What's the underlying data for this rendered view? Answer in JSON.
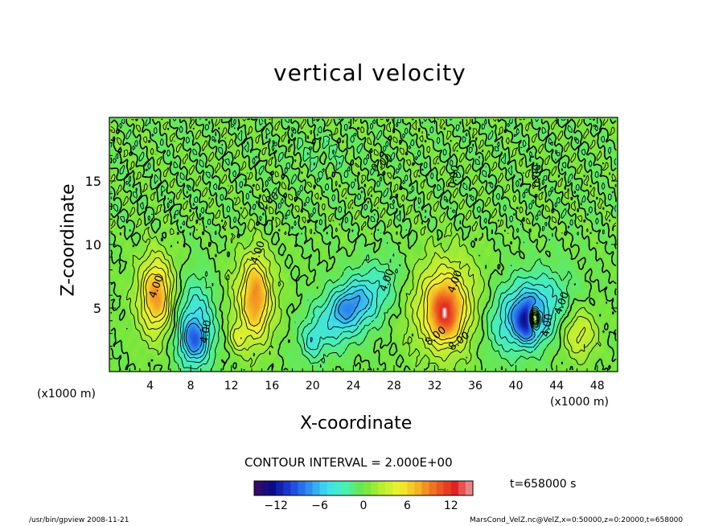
{
  "chart_data": {
    "type": "heatmap",
    "title": "vertical velocity",
    "xlabel": "X-coordinate",
    "ylabel": "Z-coordinate",
    "x_unit_left": "(x1000 m)",
    "x_unit_right": "(x1000 m)",
    "xlim": [
      0,
      50
    ],
    "ylim": [
      0,
      20
    ],
    "x_ticks": [
      4,
      8,
      12,
      16,
      20,
      24,
      28,
      32,
      36,
      40,
      44,
      48
    ],
    "y_ticks": [
      5,
      10,
      15
    ],
    "contour_interval_text": "CONTOUR INTERVAL = 2.000E+00",
    "time_text": "t=658000 s",
    "contour_labels": [
      "4.00",
      "4.00",
      "4.00",
      "4.00",
      "4.00",
      "4.00",
      "4.00",
      "0.00",
      "0.00",
      "0.00",
      "0.00",
      "8.00",
      "8.00"
    ],
    "colorbar": {
      "min": -15,
      "max": 15,
      "ticks": [
        -12,
        -6,
        0,
        6,
        12
      ],
      "stops": [
        "#3a0a63",
        "#0b0b8a",
        "#1c40dc",
        "#2f8ef0",
        "#3fe0ee",
        "#48f0b0",
        "#6ee640",
        "#b9ee30",
        "#f2f22e",
        "#f5b224",
        "#ee6322",
        "#e02222",
        "#f19a9a"
      ]
    },
    "cells": [
      {
        "x": 4.6,
        "z": 6.0,
        "w": 0.27,
        "sx": 1.5,
        "sz": 2.4
      },
      {
        "x": 4.6,
        "z": 6.0,
        "w": 0.3,
        "sx": 0.9,
        "sz": 1.8
      },
      {
        "x": 8.4,
        "z": 3.6,
        "w": -0.35,
        "sx": 1.4,
        "sz": 2.4
      },
      {
        "x": 8.3,
        "z": 2.4,
        "w": -0.3,
        "sx": 0.8,
        "sz": 1.0
      },
      {
        "x": 14.2,
        "z": 5.6,
        "w": 0.3,
        "sx": 1.6,
        "sz": 2.6
      },
      {
        "x": 14.4,
        "z": 6.0,
        "w": 0.3,
        "sx": 0.8,
        "sz": 2.0
      },
      {
        "x": 12.6,
        "z": 2.6,
        "w": 0.18,
        "sx": 0.6,
        "sz": 0.7
      },
      {
        "x": 23.8,
        "z": 5.0,
        "w": -0.38,
        "sx": 3.2,
        "sz": 1.5,
        "rot": 0.55
      },
      {
        "x": 23.5,
        "z": 5.2,
        "w": -0.15,
        "sx": 1.2,
        "sz": 0.8,
        "rot": 0.55
      },
      {
        "x": 33.0,
        "z": 5.2,
        "w": 0.4,
        "sx": 2.3,
        "sz": 2.7
      },
      {
        "x": 33.0,
        "z": 4.6,
        "w": 0.45,
        "sx": 1.0,
        "sz": 1.4
      },
      {
        "x": 41.0,
        "z": 4.6,
        "w": -0.45,
        "sx": 2.6,
        "sz": 1.8,
        "rot": 0.45
      },
      {
        "x": 41.2,
        "z": 4.0,
        "w": -0.5,
        "sx": 0.8,
        "sz": 1.0
      },
      {
        "x": 41.8,
        "z": 4.2,
        "w": 1.0,
        "sx": 0.35,
        "sz": 0.55
      },
      {
        "x": 46.2,
        "z": 3.0,
        "w": 0.26,
        "sx": 1.2,
        "sz": 1.4
      },
      {
        "x": 20.0,
        "z": 2.4,
        "w": -0.16,
        "sx": 0.6,
        "sz": 0.9
      }
    ]
  },
  "footer": {
    "left": "/usr/bin/gpview   2008-11-21",
    "right": "MarsCond_VelZ.nc@VelZ,x=0:50000,z=0:20000,t=658000"
  }
}
